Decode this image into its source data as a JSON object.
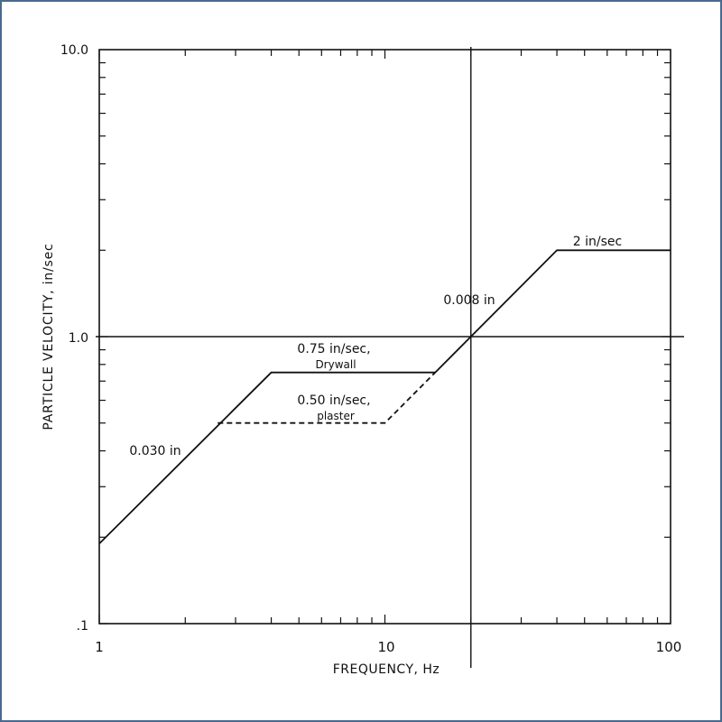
{
  "chart_data": {
    "type": "line",
    "title": "",
    "xlabel": "FREQUENCY, Hz",
    "ylabel": "PARTICLE VELOCITY, in/sec",
    "x_scale": "log",
    "y_scale": "log",
    "xlim": [
      1,
      100
    ],
    "ylim": [
      0.1,
      10
    ],
    "x_ticks": [
      {
        "value": 1,
        "label": "1"
      },
      {
        "value": 10,
        "label": "10"
      },
      {
        "value": 100,
        "label": "100"
      }
    ],
    "y_ticks": [
      {
        "value": 0.1,
        "label": ".1"
      },
      {
        "value": 1,
        "label": "1.0"
      },
      {
        "value": 10,
        "label": "10.0"
      }
    ],
    "grid": "major lines at x = 20 Hz and y = 1.0 in/sec",
    "reference_lines": {
      "x": 20,
      "y": 1.0
    },
    "series": [
      {
        "style": "solid",
        "points": [
          [
            1,
            0.19
          ],
          [
            4,
            0.75
          ],
          [
            15,
            0.75
          ],
          [
            40,
            2.0
          ],
          [
            100,
            2.0
          ]
        ]
      },
      {
        "style": "dashed",
        "points": [
          [
            2.6,
            0.5
          ],
          [
            10,
            0.5
          ],
          [
            15,
            0.75
          ]
        ]
      }
    ],
    "annotations": {
      "drywall_line1": "0.75 in/sec,",
      "drywall_line2": "Drywall",
      "plaster_line1": "0.50 in/sec,",
      "plaster_line2": "plaster",
      "displacement_low": "0.030 in",
      "displacement_high": "0.008 in",
      "velocity_max": "2 in/sec"
    }
  }
}
